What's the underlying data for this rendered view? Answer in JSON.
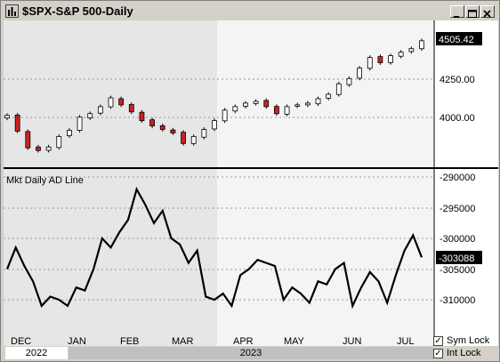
{
  "window": {
    "title": "$SPX-S&P 500-Daily",
    "buttons": [
      "minimize",
      "maximize",
      "close"
    ]
  },
  "price_panel": {
    "y_ticks": [
      "4250.00",
      "4000.00"
    ],
    "last_value": "4505.42"
  },
  "ad_panel": {
    "label": "Mkt Daily AD Line",
    "y_ticks": [
      "-290000",
      "-295000",
      "-300000",
      "-305000",
      "-310000"
    ],
    "last_value": "-303088"
  },
  "x_axis": {
    "months": [
      "DEC",
      "JAN",
      "FEB",
      "MAR",
      "APR",
      "MAY",
      "JUN",
      "JUL"
    ],
    "years": [
      "2022",
      "2023"
    ]
  },
  "options": {
    "sym_lock": {
      "label": "Sym Lock",
      "checked": true
    },
    "int_lock": {
      "label": "Int Lock",
      "checked": true
    }
  },
  "colors": {
    "up_candle": "#ffffff",
    "down_candle": "#cc2222",
    "ad_line": "#000000",
    "background_shade": "#e8e8e8"
  },
  "chart_data": [
    {
      "type": "candlestick",
      "title": "$SPX-S&P 500-Daily",
      "ylim": [
        3800,
        4560
      ],
      "x": [
        "Dec",
        "Jan",
        "Feb",
        "Mar",
        "Apr",
        "May",
        "Jun",
        "Jul"
      ],
      "closes": [
        4080,
        3990,
        3895,
        3880,
        3900,
        3960,
        3995,
        4070,
        4090,
        4130,
        4180,
        4140,
        4100,
        4050,
        4020,
        4000,
        3980,
        3920,
        3960,
        4000,
        4050,
        4110,
        4130,
        4150,
        4160,
        4130,
        4090,
        4130,
        4140,
        4150,
        4175,
        4200,
        4260,
        4290,
        4350,
        4410,
        4380,
        4420,
        4440,
        4460,
        4505
      ],
      "last": 4505.42
    },
    {
      "type": "line",
      "title": "Mkt Daily AD Line",
      "ylim": [
        -313000,
        -289000
      ],
      "values": [
        -305000,
        -301500,
        -304500,
        -307000,
        -311000,
        -309500,
        -310000,
        -311000,
        -308000,
        -308500,
        -305000,
        -300000,
        -301500,
        -299000,
        -297000,
        -292000,
        -294500,
        -297500,
        -295500,
        -300000,
        -301000,
        -304000,
        -302000,
        -309500,
        -310000,
        -309000,
        -311000,
        -306000,
        -305000,
        -303500,
        -304000,
        -304500,
        -310000,
        -308000,
        -309000,
        -310500,
        -307000,
        -307500,
        -305000,
        -304000,
        -311000,
        -308000,
        -305500,
        -307000,
        -310500,
        -306000,
        -302000,
        -299500,
        -303088
      ],
      "last": -303088
    }
  ]
}
